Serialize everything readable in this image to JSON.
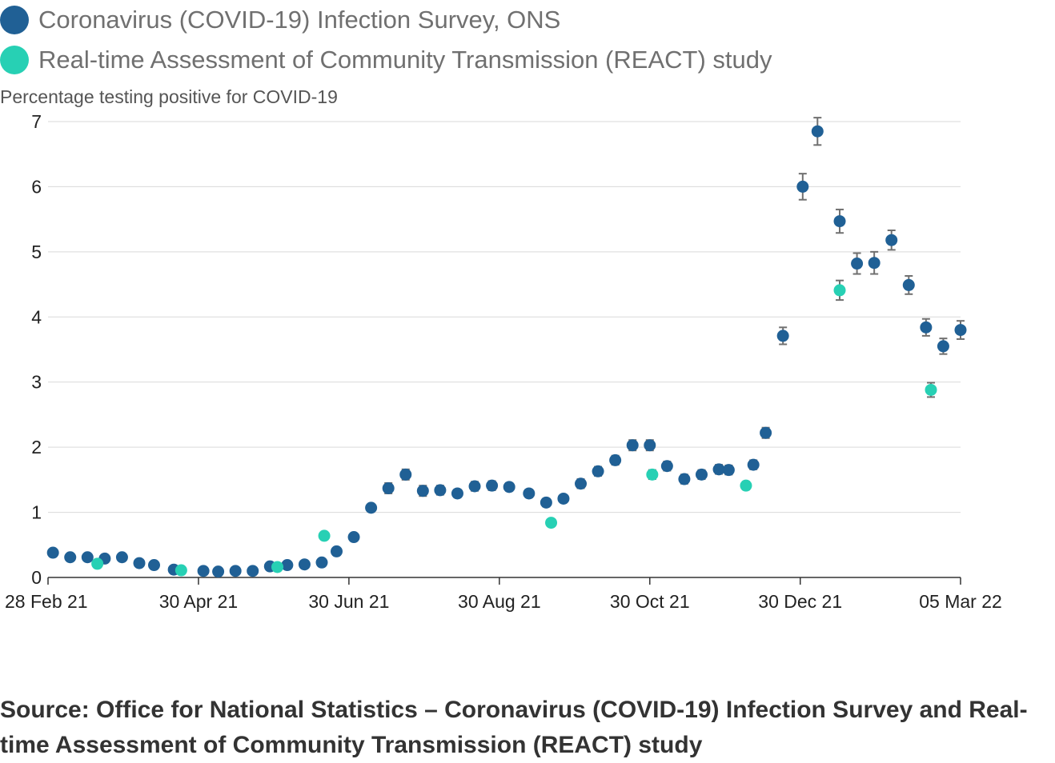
{
  "legend": [
    {
      "label": "Coronavirus (COVID-19) Infection Survey, ONS",
      "color": "#206095"
    },
    {
      "label": "Real-time Assessment of Community Transmission (REACT) study",
      "color": "#27D0B4"
    }
  ],
  "source": "Source: Office for National Statistics – Coronavirus (COVID-19) Infection Survey and Real-time Assessment of Community Transmission (REACT) study",
  "chart_data": {
    "type": "scatter",
    "title": "",
    "ylabel": "Percentage testing positive for COVID-19",
    "xlabel": "",
    "x_type": "date",
    "xlim": [
      "2021-02-28",
      "2022-03-05"
    ],
    "ylim": [
      0,
      7
    ],
    "x_ticks": [
      {
        "date": "2021-02-28",
        "label": "28 Feb 21"
      },
      {
        "date": "2021-04-30",
        "label": "30 Apr 21"
      },
      {
        "date": "2021-06-30",
        "label": "30 Jun 21"
      },
      {
        "date": "2021-08-30",
        "label": "30 Aug 21"
      },
      {
        "date": "2021-10-30",
        "label": "30 Oct 21"
      },
      {
        "date": "2021-12-30",
        "label": "30 Dec 21"
      },
      {
        "date": "2022-03-05",
        "label": "05 Mar 22"
      }
    ],
    "y_ticks": [
      0,
      1,
      2,
      3,
      4,
      5,
      6,
      7
    ],
    "grid": true,
    "legend_position": "top-left",
    "series": [
      {
        "name": "Coronavirus (COVID-19) Infection Survey, ONS",
        "color": "#206095",
        "points": [
          {
            "x": "2021-03-02",
            "y": 0.38
          },
          {
            "x": "2021-03-09",
            "y": 0.31
          },
          {
            "x": "2021-03-16",
            "y": 0.31
          },
          {
            "x": "2021-03-23",
            "y": 0.29
          },
          {
            "x": "2021-03-30",
            "y": 0.31
          },
          {
            "x": "2021-04-06",
            "y": 0.22
          },
          {
            "x": "2021-04-12",
            "y": 0.19
          },
          {
            "x": "2021-04-20",
            "y": 0.12
          },
          {
            "x": "2021-05-02",
            "y": 0.1
          },
          {
            "x": "2021-05-08",
            "y": 0.09
          },
          {
            "x": "2021-05-15",
            "y": 0.1
          },
          {
            "x": "2021-05-22",
            "y": 0.1
          },
          {
            "x": "2021-05-29",
            "y": 0.17
          },
          {
            "x": "2021-06-05",
            "y": 0.19
          },
          {
            "x": "2021-06-12",
            "y": 0.2
          },
          {
            "x": "2021-06-19",
            "y": 0.23
          },
          {
            "x": "2021-06-25",
            "y": 0.4
          },
          {
            "x": "2021-07-02",
            "y": 0.62
          },
          {
            "x": "2021-07-09",
            "y": 1.07,
            "err": 0.04
          },
          {
            "x": "2021-07-16",
            "y": 1.37,
            "err": 0.08
          },
          {
            "x": "2021-07-23",
            "y": 1.58,
            "err": 0.08
          },
          {
            "x": "2021-07-30",
            "y": 1.33,
            "err": 0.08
          },
          {
            "x": "2021-08-06",
            "y": 1.34,
            "err": 0.07
          },
          {
            "x": "2021-08-13",
            "y": 1.29,
            "err": 0.06
          },
          {
            "x": "2021-08-20",
            "y": 1.4,
            "err": 0.07
          },
          {
            "x": "2021-08-27",
            "y": 1.41,
            "err": 0.07
          },
          {
            "x": "2021-09-03",
            "y": 1.39,
            "err": 0.06
          },
          {
            "x": "2021-09-11",
            "y": 1.29,
            "err": 0.06
          },
          {
            "x": "2021-09-18",
            "y": 1.15,
            "err": 0.06
          },
          {
            "x": "2021-09-25",
            "y": 1.21,
            "err": 0.05
          },
          {
            "x": "2021-10-02",
            "y": 1.44,
            "err": 0.07
          },
          {
            "x": "2021-10-09",
            "y": 1.63,
            "err": 0.07
          },
          {
            "x": "2021-10-16",
            "y": 1.8,
            "err": 0.07
          },
          {
            "x": "2021-10-23",
            "y": 2.03,
            "err": 0.08
          },
          {
            "x": "2021-10-30",
            "y": 2.03,
            "err": 0.08
          },
          {
            "x": "2021-11-06",
            "y": 1.71,
            "err": 0.07
          },
          {
            "x": "2021-11-13",
            "y": 1.51,
            "err": 0.07
          },
          {
            "x": "2021-11-20",
            "y": 1.58,
            "err": 0.07
          },
          {
            "x": "2021-11-27",
            "y": 1.66,
            "err": 0.07
          },
          {
            "x": "2021-12-01",
            "y": 1.65,
            "err": 0.07
          },
          {
            "x": "2021-12-11",
            "y": 1.73,
            "err": 0.07
          },
          {
            "x": "2021-12-16",
            "y": 2.22,
            "err": 0.08
          },
          {
            "x": "2021-12-23",
            "y": 3.71,
            "err": 0.13
          },
          {
            "x": "2021-12-31",
            "y": 6.0,
            "err": 0.2
          },
          {
            "x": "2022-01-06",
            "y": 6.85,
            "err": 0.21
          },
          {
            "x": "2022-01-15",
            "y": 5.47,
            "err": 0.18
          },
          {
            "x": "2022-01-22",
            "y": 4.82,
            "err": 0.16
          },
          {
            "x": "2022-01-29",
            "y": 4.83,
            "err": 0.17
          },
          {
            "x": "2022-02-05",
            "y": 5.18,
            "err": 0.15
          },
          {
            "x": "2022-02-12",
            "y": 4.49,
            "err": 0.14
          },
          {
            "x": "2022-02-19",
            "y": 3.84,
            "err": 0.13
          },
          {
            "x": "2022-02-26",
            "y": 3.55,
            "err": 0.12
          },
          {
            "x": "2022-03-05",
            "y": 3.8,
            "err": 0.14
          }
        ]
      },
      {
        "name": "Real-time Assessment of Community Transmission (REACT) study",
        "color": "#27D0B4",
        "points": [
          {
            "x": "2021-03-20",
            "y": 0.21
          },
          {
            "x": "2021-04-23",
            "y": 0.11
          },
          {
            "x": "2021-06-01",
            "y": 0.16
          },
          {
            "x": "2021-06-20",
            "y": 0.64
          },
          {
            "x": "2021-09-20",
            "y": 0.84
          },
          {
            "x": "2021-10-31",
            "y": 1.58,
            "err": 0.07
          },
          {
            "x": "2021-12-08",
            "y": 1.41,
            "err": 0.06
          },
          {
            "x": "2022-01-15",
            "y": 4.41,
            "err": 0.15
          },
          {
            "x": "2022-02-21",
            "y": 2.88,
            "err": 0.11
          }
        ]
      }
    ]
  }
}
